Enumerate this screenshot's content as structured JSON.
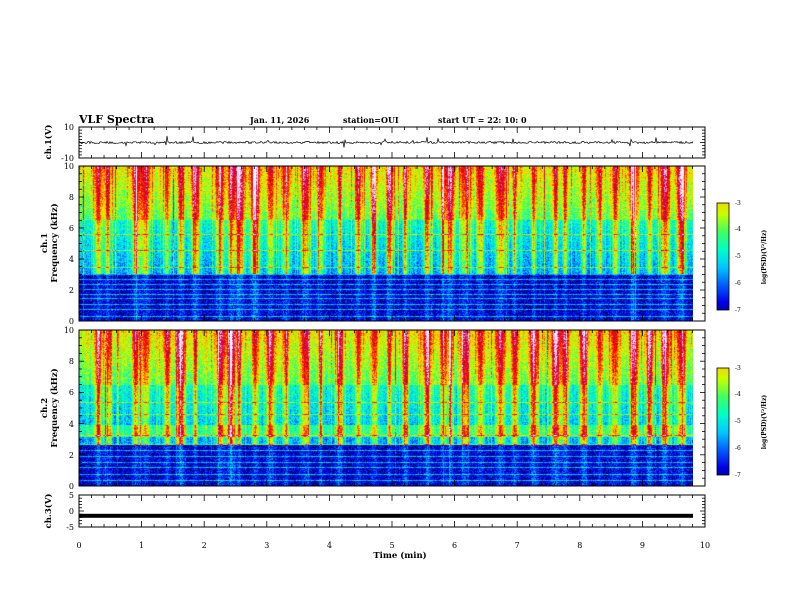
{
  "header": {
    "title": "VLF Spectra",
    "date": "Jan. 11, 2026",
    "station": "station=OUI",
    "start": "start  UT =  22: 10: 0"
  },
  "colors": {
    "colormap": [
      "#000064",
      "#0000e6",
      "#0060ff",
      "#00c8ff",
      "#00ffc8",
      "#40ff60",
      "#c8ff00",
      "#ffc800",
      "#ff4000",
      "#e60000",
      "#c8006e",
      "#ffb4dc",
      "#ffffff"
    ]
  },
  "chart_data": [
    {
      "type": "line",
      "id": "ch1-waveform",
      "ylabel": "ch.1(V)",
      "ylim": [
        -10,
        10
      ],
      "yticks": [
        "10",
        "-10"
      ],
      "baseline_volts": 0,
      "noise_amplitude_volts": 1.5,
      "x_range_min": [
        0,
        9.8
      ]
    },
    {
      "type": "heatmap",
      "id": "ch1-spectrogram",
      "ylabel": "ch.1\nFrequency (kHz)",
      "ylim_khz": [
        0,
        10
      ],
      "yticks": [
        "0",
        "2",
        "4",
        "6",
        "8",
        "10"
      ],
      "x_range_min": [
        0,
        9.8
      ],
      "colorbar": {
        "label": "log(PSD)(V²/Hz)",
        "range": [
          -7,
          -3
        ],
        "ticks": [
          "-3",
          "-4",
          "-5",
          "-6",
          "-7"
        ]
      },
      "dark_band_khz": [
        0,
        3.0
      ],
      "bright_band_khz": null,
      "burst_times_min": [
        0.3,
        0.45,
        0.9,
        1.05,
        1.4,
        1.62,
        1.85,
        2.25,
        2.42,
        2.55,
        2.8,
        3.05,
        3.3,
        3.6,
        3.85,
        4.15,
        4.45,
        4.7,
        4.95,
        5.2,
        5.55,
        5.8,
        5.92,
        6.15,
        6.4,
        6.72,
        6.95,
        7.25,
        7.6,
        7.75,
        8.05,
        8.3,
        8.55,
        8.85,
        9.1,
        9.35,
        9.6
      ],
      "line_freqs_khz": [
        0.35,
        0.75,
        1.1,
        1.5,
        1.75,
        2.05,
        2.4,
        2.7,
        3.05,
        3.5,
        4.6,
        5.6
      ]
    },
    {
      "type": "heatmap",
      "id": "ch2-spectrogram",
      "ylabel": "ch.2\nFrequency (kHz)",
      "ylim_khz": [
        0,
        10
      ],
      "yticks": [
        "0",
        "2",
        "4",
        "6",
        "8",
        "10"
      ],
      "x_range_min": [
        0,
        9.8
      ],
      "colorbar": {
        "label": "log(PSD)(V²/Hz)",
        "range": [
          -7,
          -3
        ],
        "ticks": [
          "-3",
          "-4",
          "-5",
          "-6",
          "-7"
        ]
      },
      "dark_band_khz": [
        0,
        2.6
      ],
      "bright_band_khz": [
        3.1,
        3.9
      ],
      "burst_times_min": [
        0.3,
        0.45,
        0.9,
        1.05,
        1.4,
        1.62,
        1.85,
        2.25,
        2.42,
        2.55,
        2.8,
        3.05,
        3.3,
        3.6,
        3.85,
        4.15,
        4.45,
        4.7,
        4.95,
        5.2,
        5.55,
        5.8,
        5.92,
        6.15,
        6.4,
        6.72,
        6.95,
        7.25,
        7.6,
        7.75,
        8.05,
        8.3,
        8.55,
        8.85,
        9.1,
        9.35,
        9.6
      ],
      "line_freqs_khz": [
        0.4,
        0.8,
        1.2,
        1.55,
        1.9,
        2.3,
        2.7,
        3.3,
        4.6,
        5.4
      ]
    },
    {
      "type": "line",
      "id": "ch3-waveform",
      "ylabel": "ch.3(V)",
      "ylim": [
        -5,
        5
      ],
      "yticks": [
        "5",
        "0",
        "-5"
      ],
      "baseline_volts": -1.5,
      "noise_amplitude_volts": 0,
      "x_range_min": [
        0,
        9.8
      ],
      "xlabel": "Time (min)",
      "xlim": [
        0,
        10
      ],
      "xticks": [
        "0",
        "1",
        "2",
        "3",
        "4",
        "5",
        "6",
        "7",
        "8",
        "9",
        "10"
      ]
    }
  ]
}
